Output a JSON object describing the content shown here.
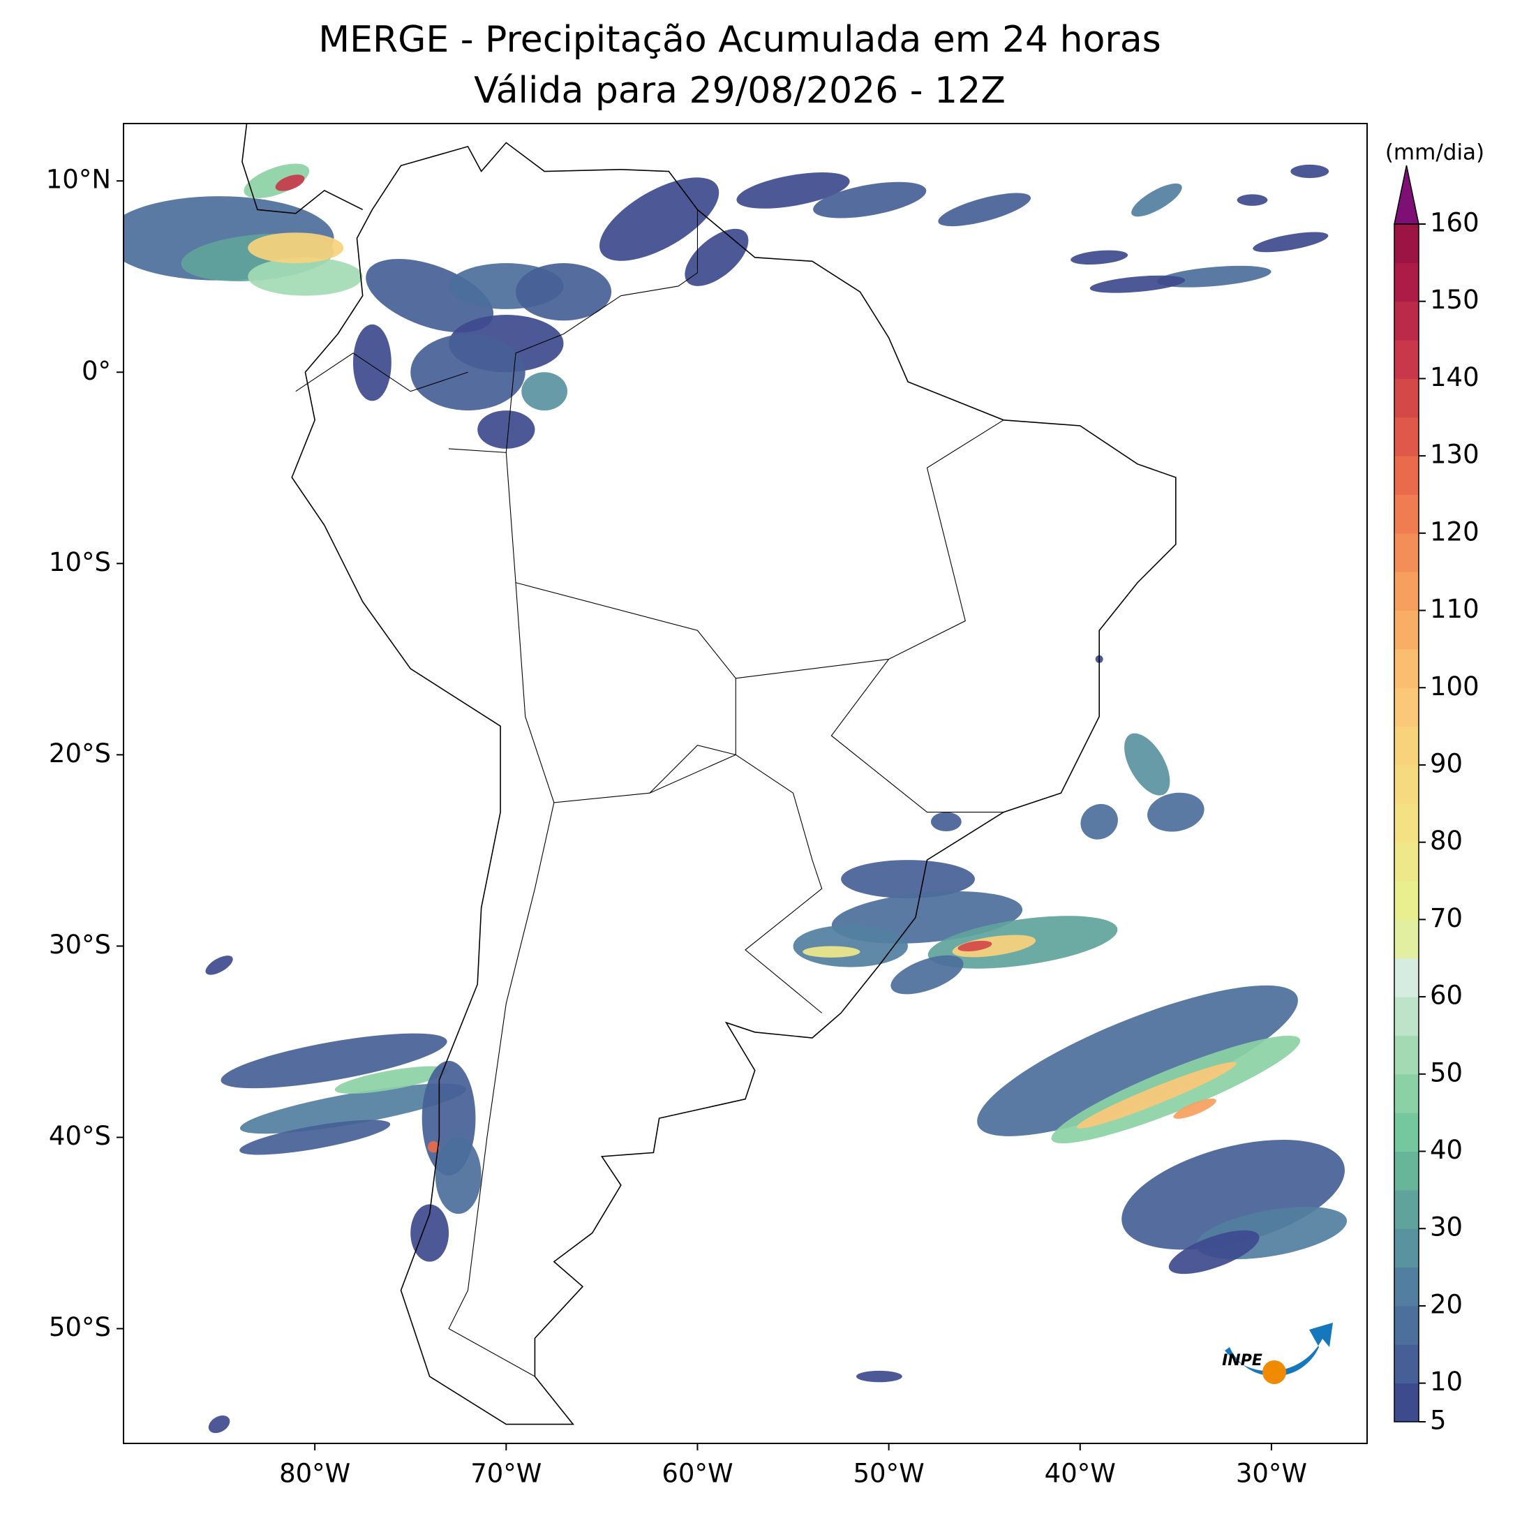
{
  "chart_data": {
    "type": "precip-map",
    "title": "MERGE - Precipitação Acumulada em 24 horas",
    "subtitle": "Válida para 29/08/2026 - 12Z",
    "xlim": [
      -90,
      -25
    ],
    "ylim": [
      -56,
      13
    ],
    "xticks": [
      {
        "value": -80,
        "label": "80°W"
      },
      {
        "value": -70,
        "label": "70°W"
      },
      {
        "value": -60,
        "label": "60°W"
      },
      {
        "value": -50,
        "label": "50°W"
      },
      {
        "value": -40,
        "label": "40°W"
      },
      {
        "value": -30,
        "label": "30°W"
      }
    ],
    "yticks": [
      {
        "value": 10,
        "label": "10°N"
      },
      {
        "value": 0,
        "label": "0°"
      },
      {
        "value": -10,
        "label": "10°S"
      },
      {
        "value": -20,
        "label": "20°S"
      },
      {
        "value": -30,
        "label": "30°S"
      },
      {
        "value": -40,
        "label": "40°S"
      },
      {
        "value": -50,
        "label": "50°S"
      }
    ],
    "colorbar": {
      "label": "(mm/dia)",
      "lim": [
        5,
        160
      ],
      "levels": [
        5,
        10,
        15,
        20,
        25,
        30,
        35,
        40,
        45,
        50,
        55,
        60,
        65,
        70,
        75,
        80,
        85,
        90,
        95,
        100,
        105,
        110,
        115,
        120,
        125,
        130,
        135,
        140,
        145,
        150,
        155,
        160
      ],
      "colors": [
        "#3e4a8e",
        "#465f96",
        "#4c6f9c",
        "#527f9f",
        "#5a93a0",
        "#5fa39c",
        "#67b699",
        "#75c79d",
        "#8bd1a5",
        "#a3dab4",
        "#bde3c8",
        "#d6ece0",
        "#e2eea0",
        "#e9ee8e",
        "#efe88a",
        "#f3e184",
        "#f6da80",
        "#f9d27c",
        "#fac878",
        "#fbbd70",
        "#f9ae65",
        "#f79f5e",
        "#f48e58",
        "#f07c52",
        "#ea6a4c",
        "#e05849",
        "#d44848",
        "#c8384a",
        "#bb2a49",
        "#ac1c46",
        "#9c1444"
      ],
      "extend_color": "#7e0f74",
      "ticks": [
        5,
        10,
        20,
        30,
        40,
        50,
        60,
        70,
        80,
        90,
        100,
        110,
        120,
        130,
        140,
        150,
        160
      ]
    },
    "logo": "INPE"
  }
}
